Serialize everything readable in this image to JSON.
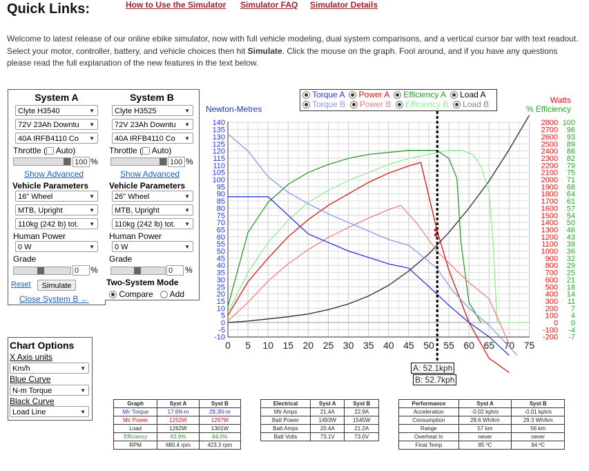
{
  "header": {
    "title": "Quick Links:",
    "links": [
      "How to Use the Simulator",
      "Simulator FAQ",
      "Simulator Details"
    ]
  },
  "intro": {
    "part1": "Welcome to latest release of our online ebike simulator, now with full vehicle modeling, dual system comparisons, and a vertical cursor bar with text readout. Select your motor, controller, battery, and vehicle choices then hit ",
    "bold": "Simulate",
    "part2": ". Click the mouse on the graph. Fool around, and if you have any questions please read the full explanation of the new features in the text below."
  },
  "systemA": {
    "title": "System A",
    "motor": "Clyte H3540",
    "battery": "72V 23Ah Downtu",
    "controller": "40A IRFB4110 Co",
    "throttle_label": "Throttle (",
    "auto_label": "Auto)",
    "throttle_value": "100",
    "percent": "%",
    "show_advanced": "Show Advanced",
    "vehicle_params": "Vehicle Parameters",
    "wheel": "16\"  Wheel",
    "position": "MTB, Upright",
    "weight": "110kg (242 lb) tot.",
    "human_power_label": "Human Power",
    "human_power": "0 W",
    "grade_label": "Grade",
    "grade_value": "0",
    "reset": "Reset",
    "simulate": "Simulate",
    "close_b": "Close System B ←"
  },
  "systemB": {
    "title": "System B",
    "motor": "Clyte H3525",
    "battery": "72V 23Ah Downtu",
    "controller": "40A IRFB4110 Co",
    "throttle_label": "Throttle (",
    "auto_label": "Auto)",
    "throttle_value": "100",
    "percent": "%",
    "show_advanced": "Show Advanced",
    "vehicle_params": "Vehicle Parameters",
    "wheel": "26\"  Wheel",
    "position": "MTB, Upright",
    "weight": "110kg (242 lb) tot.",
    "human_power_label": "Human Power",
    "human_power": "0 W",
    "grade_label": "Grade",
    "grade_value": "0",
    "two_system": "Two-System Mode",
    "compare": "Compare",
    "add": "Add"
  },
  "chart_options": {
    "title": "Chart Options",
    "x_axis_label": "X Axis units",
    "x_axis": "Km/h",
    "blue_label": "Blue Curve",
    "blue": "N-m Torque",
    "black_label": "Black Curve",
    "black": "Load Line"
  },
  "legend": {
    "row1": [
      "Torque A",
      "Power A",
      "Efficiency A",
      "Load A"
    ],
    "row2": [
      "Torque B",
      "Power B",
      "Efficiency B",
      "Load B"
    ]
  },
  "colors": {
    "torqueA": "#2233dd",
    "torqueB": "#8899ee",
    "powerA": "#e01010",
    "powerB": "#f08080",
    "effA": "#2a9a2a",
    "effB": "#90ee90",
    "loadA": "#333333",
    "loadB": "#888888",
    "linkRed": "#a0202a"
  },
  "readout": {
    "a": "A: 52.1kph",
    "b": "B: 52.7kph"
  },
  "chart_data": {
    "type": "line",
    "ylabel_left": "Newton-Metres",
    "ylabel_right_top": "Watts",
    "ylabel_right_bottom": "% Efficiency",
    "xlim": [
      0,
      75
    ],
    "x_ticks": [
      "0",
      "5",
      "10",
      "15",
      "20",
      "25",
      "30",
      "35",
      "40",
      "45",
      "50",
      "55",
      "60",
      "65",
      "70",
      "75"
    ],
    "torque_ticks": [
      "140",
      "135",
      "130",
      "125",
      "120",
      "115",
      "110",
      "105",
      "100",
      "95",
      "90",
      "85",
      "80",
      "75",
      "70",
      "65",
      "60",
      "55",
      "50",
      "45",
      "40",
      "35",
      "30",
      "25",
      "20",
      "15",
      "10",
      "5",
      "0",
      "-5",
      "-10"
    ],
    "watt_ticks": [
      "2800",
      "2700",
      "2600",
      "2500",
      "2400",
      "2300",
      "2200",
      "2100",
      "2000",
      "1900",
      "1800",
      "1700",
      "1600",
      "1500",
      "1400",
      "1300",
      "1200",
      "1100",
      "1000",
      "900",
      "800",
      "700",
      "600",
      "500",
      "400",
      "300",
      "200",
      "100",
      "0",
      "-100",
      "-200"
    ],
    "eff_ticks": [
      "100",
      "96",
      "93",
      "89",
      "86",
      "82",
      "79",
      "75",
      "71",
      "68",
      "64",
      "61",
      "57",
      "54",
      "50",
      "46",
      "43",
      "39",
      "36",
      "32",
      "29",
      "25",
      "21",
      "18",
      "14",
      "11",
      "7",
      "4",
      "0",
      "-4",
      "-7"
    ],
    "cursor_x": 52.1,
    "series": [
      {
        "name": "Torque A",
        "x": [
          0,
          10,
          20,
          30,
          40,
          45,
          52,
          55,
          60,
          65,
          70
        ],
        "y": [
          88,
          88,
          62,
          50,
          41,
          38,
          20,
          12,
          0,
          -10,
          -23
        ]
      },
      {
        "name": "Torque B",
        "x": [
          0,
          5,
          10,
          15,
          20,
          25,
          30,
          35,
          40,
          45,
          52,
          56,
          60,
          65,
          72
        ],
        "y": [
          132,
          120,
          102,
          91,
          83,
          76,
          70,
          64,
          58,
          54,
          38,
          22,
          10,
          -2,
          -23
        ]
      },
      {
        "name": "Power A",
        "x": [
          0,
          5,
          10,
          15,
          20,
          25,
          30,
          35,
          40,
          45,
          48,
          52,
          55,
          60,
          65,
          70
        ],
        "y": [
          100,
          570,
          900,
          1200,
          1440,
          1640,
          1800,
          1960,
          2090,
          2190,
          2240,
          1300,
          730,
          0,
          -500,
          -700
        ]
      },
      {
        "name": "Power B",
        "x": [
          0,
          5,
          10,
          15,
          20,
          25,
          30,
          35,
          40,
          43,
          47,
          52,
          57,
          60,
          65,
          70
        ],
        "y": [
          20,
          280,
          580,
          820,
          1020,
          1190,
          1330,
          1460,
          1580,
          1640,
          1390,
          1000,
          720,
          560,
          330,
          -300
        ]
      },
      {
        "name": "Efficiency A",
        "x": [
          0,
          5,
          10,
          15,
          20,
          25,
          30,
          35,
          40,
          45,
          50,
          52,
          55,
          57,
          58,
          60,
          63
        ],
        "y": [
          8,
          45,
          60,
          69,
          75,
          79,
          82,
          84,
          85,
          86,
          86,
          86,
          82,
          72,
          40,
          10,
          0
        ]
      },
      {
        "name": "Efficiency B",
        "x": [
          0,
          5,
          10,
          15,
          20,
          25,
          30,
          35,
          40,
          45,
          50,
          55,
          58,
          61,
          63,
          65,
          66,
          67,
          75
        ],
        "y": [
          5,
          25,
          40,
          51,
          60,
          66,
          71,
          75,
          79,
          82,
          84,
          86,
          86,
          84,
          78,
          65,
          40,
          0,
          0
        ]
      },
      {
        "name": "Load A",
        "x": [
          0,
          5,
          10,
          15,
          20,
          25,
          30,
          35,
          40,
          45,
          50,
          55,
          60,
          65,
          70,
          75
        ],
        "y": [
          0,
          20,
          50,
          80,
          120,
          180,
          260,
          370,
          520,
          720,
          960,
          1260,
          1600,
          1980,
          2420,
          2900
        ]
      },
      {
        "name": "Load B",
        "x": [
          0,
          5,
          10,
          15,
          20,
          25,
          30,
          35,
          40,
          45,
          50,
          55,
          60,
          65,
          70,
          75
        ],
        "y": [
          0,
          20,
          50,
          80,
          120,
          180,
          260,
          370,
          520,
          720,
          960,
          1260,
          1600,
          1980,
          2420,
          2900
        ]
      }
    ]
  },
  "graph_table": {
    "headers": [
      "Graph",
      "Syst A",
      "Syst B"
    ],
    "rows": [
      [
        "Mtr Torque",
        "17.6N-m",
        "29.3N-m"
      ],
      [
        "Mtr Power",
        "1252W",
        "1297W"
      ],
      [
        "Load",
        "1262W",
        "1301W"
      ],
      [
        "Efficiency",
        "83.9%",
        "84.0%"
      ],
      [
        "RPM",
        "680.4 rpm",
        "423.3 rpm"
      ]
    ]
  },
  "elec_table": {
    "headers": [
      "Electrical",
      "Syst A",
      "Syst B"
    ],
    "rows": [
      [
        "Mtr Amps",
        "21.4A",
        "22.9A"
      ],
      [
        "Batt Power",
        "1493W",
        "1545W"
      ],
      [
        "Batt Amps",
        "20.4A",
        "21.2A"
      ],
      [
        "Batt Volts",
        "73.1V",
        "73.0V"
      ]
    ]
  },
  "perf_table": {
    "headers": [
      "Performance",
      "Syst A",
      "Syst B"
    ],
    "rows": [
      [
        "Acceleration",
        "-0.02 kph/s",
        "-0.01 kph/s"
      ],
      [
        "Consumption",
        "28.6 Wh/km",
        "29.3 Wh/km"
      ],
      [
        "Range",
        "57 km",
        "56 km"
      ],
      [
        "Overheat In",
        "never",
        "never"
      ],
      [
        "Final Temp",
        "85 ºC",
        "94 ºC"
      ]
    ]
  }
}
